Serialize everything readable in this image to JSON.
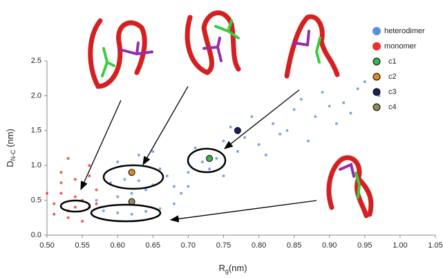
{
  "chart_data": {
    "type": "scatter",
    "x_label": {
      "main": "R",
      "sub": "g",
      "unit": "(nm)"
    },
    "y_label": {
      "main": "D",
      "sub": "N-C",
      "unit": " (nm)"
    },
    "xlim": [
      0.5,
      1.05
    ],
    "xticks": [
      {
        "value": 0.5,
        "label": "0.50"
      },
      0.55,
      {
        "value": 0.6,
        "label": "0.60"
      },
      0.65,
      {
        "value": 0.7,
        "label": "0.70"
      },
      0.75,
      {
        "value": 0.8,
        "label": "0.80"
      },
      0.85,
      {
        "value": 0.9,
        "label": "0.90"
      },
      0.95,
      {
        "value": 1.0,
        "label": "1.00"
      },
      1.05
    ],
    "ylim": [
      0,
      2.5
    ],
    "yticks": [
      {
        "value": 0,
        "label": "0.0"
      },
      0.5,
      {
        "value": 1.0,
        "label": "1.0"
      },
      1.5,
      {
        "value": 2.0,
        "label": "2.0"
      },
      2.5
    ],
    "series": [
      {
        "name": "heterodimer",
        "color": "#5a8ee0",
        "x": [
          0.58,
          0.6,
          0.62,
          0.64,
          0.66,
          0.59,
          0.61,
          0.63,
          0.65,
          0.67,
          0.6,
          0.62,
          0.64,
          0.66,
          0.68,
          0.7,
          0.72,
          0.74,
          0.71,
          0.73,
          0.75,
          0.77,
          0.69,
          0.76,
          0.78,
          0.8,
          0.82,
          0.79,
          0.81,
          0.83,
          0.85,
          0.84,
          0.86,
          0.88,
          0.9,
          0.87,
          0.89,
          0.92,
          0.94,
          0.91,
          0.95,
          0.97,
          0.93,
          0.6,
          0.63,
          0.57,
          0.68,
          0.7,
          0.65,
          0.75
        ],
        "values": [
          0.35,
          0.32,
          0.3,
          0.34,
          0.38,
          0.75,
          0.8,
          0.78,
          0.72,
          0.85,
          0.55,
          0.6,
          0.65,
          0.95,
          0.7,
          0.9,
          1.05,
          1.1,
          1.25,
          0.95,
          1.35,
          1.2,
          0.6,
          1.55,
          1.4,
          1.3,
          1.6,
          1.7,
          1.15,
          1.45,
          1.8,
          1.5,
          1.95,
          1.7,
          1.85,
          1.35,
          2.05,
          1.9,
          2.1,
          1.6,
          2.2,
          2.0,
          1.75,
          1.05,
          1.15,
          0.5,
          0.45,
          0.7,
          1.2,
          0.85
        ]
      },
      {
        "name": "monomer",
        "color": "#e8322e",
        "x": [
          0.51,
          0.52,
          0.53,
          0.54,
          0.55,
          0.56,
          0.57,
          0.52,
          0.53,
          0.54,
          0.55,
          0.56,
          0.51,
          0.53,
          0.55,
          0.57,
          0.52,
          0.54,
          0.56,
          0.5
        ],
        "values": [
          0.45,
          0.6,
          0.35,
          0.8,
          0.5,
          0.4,
          0.65,
          0.9,
          0.25,
          0.55,
          0.7,
          1.0,
          0.3,
          1.1,
          0.2,
          0.45,
          0.75,
          0.4,
          0.85,
          0.6
        ]
      },
      {
        "name": "c1",
        "color": "#3bb54a",
        "x": [
          0.73
        ],
        "values": [
          1.1
        ]
      },
      {
        "name": "c2",
        "color": "#e0872a",
        "x": [
          0.62
        ],
        "values": [
          0.9
        ]
      },
      {
        "name": "c3",
        "color": "#1b1f5c",
        "x": [
          0.77
        ],
        "values": [
          1.5
        ]
      },
      {
        "name": "c4",
        "color": "#8f8c5e",
        "x": [
          0.62
        ],
        "values": [
          0.48
        ]
      }
    ]
  }
}
